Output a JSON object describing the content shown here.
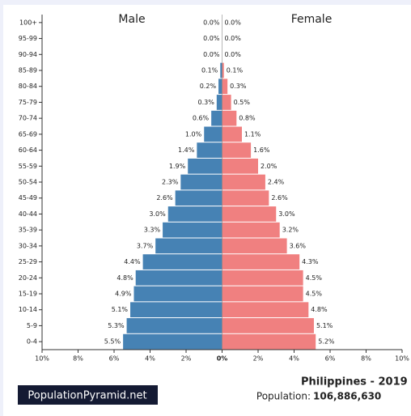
{
  "chart_data": {
    "type": "population_pyramid",
    "title": "Philippines - 2019",
    "population_label": "Population:",
    "population": "106,886,630",
    "watermark": "PopulationPyramid.net",
    "categories": [
      "0-4",
      "5-9",
      "10-14",
      "15-19",
      "20-24",
      "25-29",
      "30-34",
      "35-39",
      "40-44",
      "45-49",
      "50-54",
      "55-59",
      "60-64",
      "65-69",
      "70-74",
      "75-79",
      "80-84",
      "85-89",
      "90-94",
      "95-99",
      "100+"
    ],
    "series": [
      {
        "name": "Male",
        "color": "#4682b4",
        "side": "left",
        "values": [
          5.5,
          5.3,
          5.1,
          4.9,
          4.8,
          4.4,
          3.7,
          3.3,
          3.0,
          2.6,
          2.3,
          1.9,
          1.4,
          1.0,
          0.6,
          0.3,
          0.2,
          0.1,
          0.0,
          0.0,
          0.0
        ],
        "value_labels": [
          "5.5%",
          "5.3%",
          "5.1%",
          "4.9%",
          "4.8%",
          "4.4%",
          "3.7%",
          "3.3%",
          "3.0%",
          "2.6%",
          "2.3%",
          "1.9%",
          "1.4%",
          "1.0%",
          "0.6%",
          "0.3%",
          "0.2%",
          "0.1%",
          "0.0%",
          "0.0%",
          "0.0%"
        ]
      },
      {
        "name": "Female",
        "color": "#f08080",
        "side": "right",
        "values": [
          5.2,
          5.1,
          4.8,
          4.5,
          4.5,
          4.3,
          3.6,
          3.2,
          3.0,
          2.6,
          2.4,
          2.0,
          1.6,
          1.1,
          0.8,
          0.5,
          0.3,
          0.1,
          0.0,
          0.0,
          0.0
        ],
        "value_labels": [
          "5.2%",
          "5.1%",
          "4.8%",
          "4.5%",
          "4.5%",
          "4.3%",
          "3.6%",
          "3.2%",
          "3.0%",
          "2.6%",
          "2.4%",
          "2.0%",
          "1.6%",
          "1.1%",
          "0.8%",
          "0.5%",
          "0.3%",
          "0.1%",
          "0.0%",
          "0.0%",
          "0.0%"
        ]
      }
    ],
    "xlim": [
      -10,
      10
    ],
    "xticks": [
      {
        "value": -10,
        "label": "10%"
      },
      {
        "value": -8,
        "label": "8%"
      },
      {
        "value": -6,
        "label": "6%"
      },
      {
        "value": -4,
        "label": "4%"
      },
      {
        "value": -2,
        "label": "2%"
      },
      {
        "value": 0,
        "label": "0%"
      },
      {
        "value": 2,
        "label": "2%"
      },
      {
        "value": 4,
        "label": "4%"
      },
      {
        "value": 6,
        "label": "6%"
      },
      {
        "value": 8,
        "label": "8%"
      },
      {
        "value": 10,
        "label": "10%"
      }
    ]
  }
}
